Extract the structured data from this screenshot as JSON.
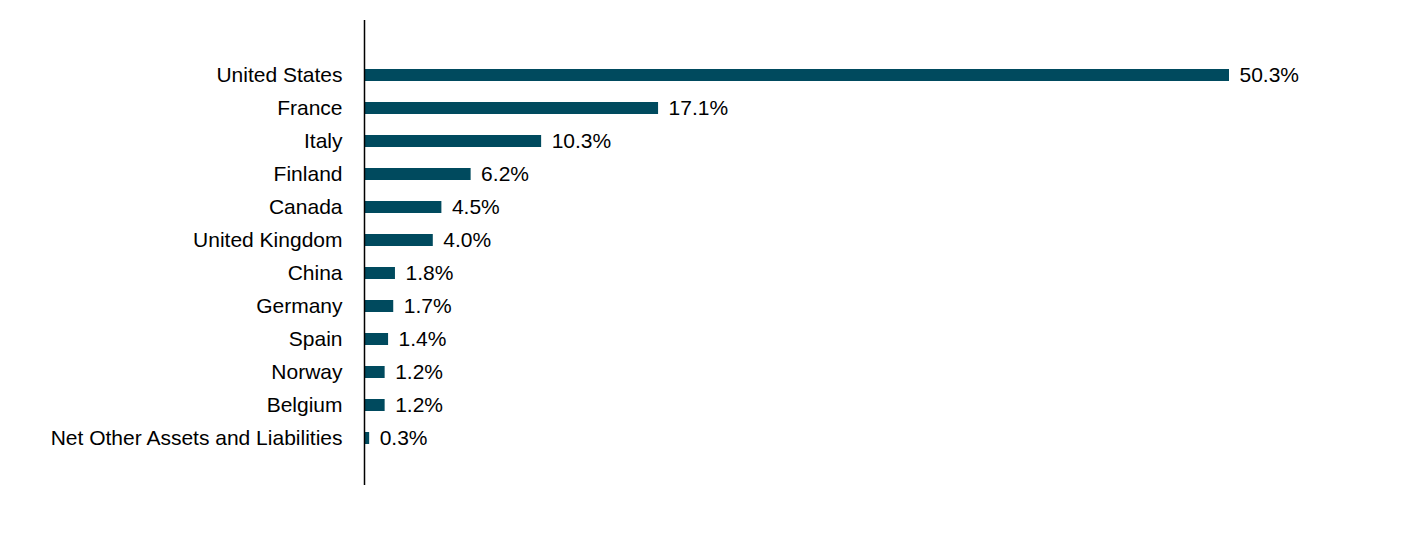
{
  "chart_data": {
    "type": "bar",
    "orientation": "horizontal",
    "categories": [
      "United States",
      "France",
      "Italy",
      "Finland",
      "Canada",
      "United Kingdom",
      "China",
      "Germany",
      "Spain",
      "Norway",
      "Belgium",
      "Net Other Assets and Liabilities"
    ],
    "values": [
      50.3,
      17.1,
      10.3,
      6.2,
      4.5,
      4.0,
      1.8,
      1.7,
      1.4,
      1.2,
      1.2,
      0.3
    ],
    "value_labels": [
      "50.3%",
      "17.1%",
      "10.3%",
      "6.2%",
      "4.5%",
      "4.0%",
      "1.8%",
      "1.7%",
      "1.4%",
      "1.2%",
      "1.2%",
      "0.3%"
    ],
    "color": "#004a5e",
    "data_labels": true,
    "tick_labels": "y",
    "grid": false
  }
}
